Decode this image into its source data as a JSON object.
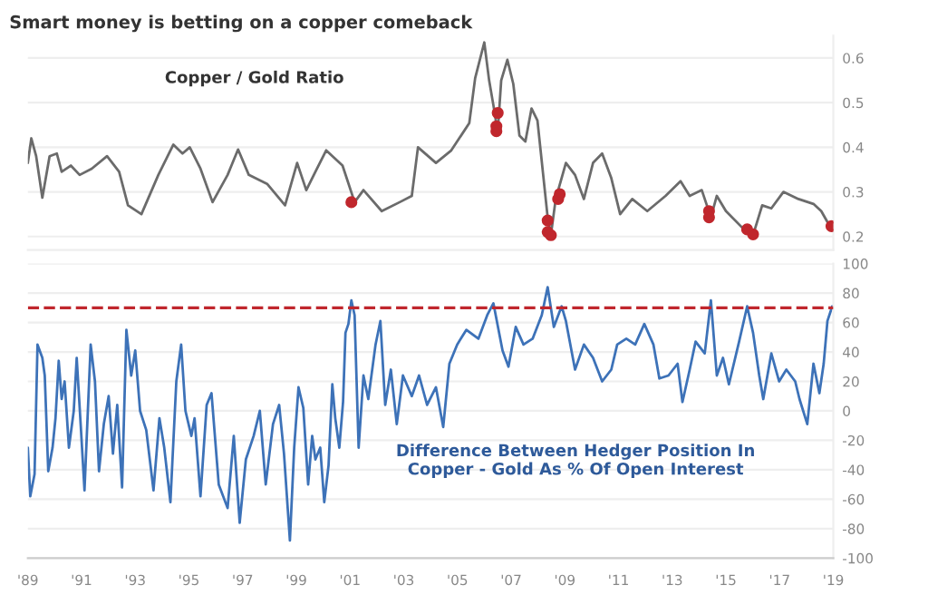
{
  "chart_data": [
    {
      "type": "line",
      "title": "Smart money is betting on a copper comeback",
      "annotations": [
        "Copper / Gold Ratio"
      ],
      "xlim": [
        1989,
        2019
      ],
      "ylim": [
        0.17,
        0.65
      ],
      "yticks": [
        0.2,
        0.3,
        0.4,
        0.5,
        0.6
      ],
      "grid": "y",
      "tick_labels": "y",
      "series": [
        {
          "color": "#6b6b6b",
          "x": [
            1989.0,
            1989.13,
            1989.31,
            1989.54,
            1989.81,
            1990.08,
            1990.26,
            1990.6,
            1990.93,
            1991.38,
            1991.95,
            1992.4,
            1992.73,
            1993.23,
            1993.86,
            1994.42,
            1994.76,
            1995.03,
            1995.43,
            1995.88,
            1996.44,
            1996.83,
            1997.23,
            1997.91,
            1998.58,
            1999.03,
            1999.37,
            1999.71,
            2000.11,
            2000.72,
            2001.17,
            2001.5,
            2002.18,
            2002.85,
            2003.3,
            2003.53,
            2004.2,
            2004.77,
            2005.44,
            2005.66,
            2006.0,
            2006.18,
            2006.34,
            2006.5,
            2006.63,
            2006.86,
            2007.08,
            2007.31,
            2007.53,
            2007.76,
            2007.98,
            2008.36,
            2008.48,
            2008.66,
            2009.04,
            2009.38,
            2009.71,
            2010.05,
            2010.39,
            2010.73,
            2011.06,
            2011.51,
            2012.07,
            2012.75,
            2013.31,
            2013.65,
            2014.1,
            2014.44,
            2014.66,
            2015.0,
            2015.67,
            2016.01,
            2016.35,
            2016.69,
            2017.14,
            2017.7,
            2018.26,
            2018.55,
            2018.87
          ],
          "values": [
            0.365,
            0.42,
            0.38,
            0.287,
            0.38,
            0.386,
            0.345,
            0.359,
            0.338,
            0.352,
            0.38,
            0.345,
            0.27,
            0.25,
            0.338,
            0.406,
            0.386,
            0.4,
            0.352,
            0.277,
            0.338,
            0.395,
            0.338,
            0.318,
            0.27,
            0.365,
            0.304,
            0.345,
            0.393,
            0.359,
            0.277,
            0.304,
            0.257,
            0.277,
            0.291,
            0.4,
            0.365,
            0.393,
            0.454,
            0.555,
            0.635,
            0.55,
            0.494,
            0.433,
            0.55,
            0.596,
            0.542,
            0.426,
            0.413,
            0.487,
            0.46,
            0.243,
            0.203,
            0.284,
            0.365,
            0.338,
            0.284,
            0.365,
            0.386,
            0.331,
            0.25,
            0.284,
            0.257,
            0.291,
            0.324,
            0.291,
            0.304,
            0.243,
            0.291,
            0.257,
            0.216,
            0.203,
            0.27,
            0.263,
            0.3,
            0.284,
            0.273,
            0.257,
            0.223
          ]
        },
        {
          "type": "scatter",
          "color": "#c0272d",
          "marker": "circle",
          "x": [
            2001.05,
            2006.5,
            2006.45,
            2006.45,
            2008.36,
            2008.36,
            2008.48,
            2008.75,
            2008.81,
            2014.37,
            2014.37,
            2015.79,
            2016.01,
            2018.93
          ],
          "values": [
            0.277,
            0.477,
            0.447,
            0.436,
            0.236,
            0.21,
            0.203,
            0.284,
            0.295,
            0.257,
            0.243,
            0.216,
            0.205,
            0.223
          ]
        }
      ]
    },
    {
      "type": "line",
      "annotations": [
        "Difference Between Hedger Position In\nCopper - Gold As % Of Open Interest"
      ],
      "xlim": [
        1989,
        2019
      ],
      "ylim": [
        -100,
        100
      ],
      "yticks": [
        -100,
        -80,
        -60,
        -40,
        -20,
        0,
        20,
        40,
        60,
        80,
        100
      ],
      "grid": "y",
      "xticks": [
        {
          "value": 1989,
          "label": "'89"
        },
        {
          "value": 1991,
          "label": "'91"
        },
        {
          "value": 1993,
          "label": "'93"
        },
        {
          "value": 1995,
          "label": "'95"
        },
        {
          "value": 1997,
          "label": "'97"
        },
        {
          "value": 1999,
          "label": "'99"
        },
        {
          "value": 2001,
          "label": "'01"
        },
        {
          "value": 2003,
          "label": "'03"
        },
        {
          "value": 2005,
          "label": "'05"
        },
        {
          "value": 2007,
          "label": "'07"
        },
        {
          "value": 2009,
          "label": "'09"
        },
        {
          "value": 2011,
          "label": "'11"
        },
        {
          "value": 2013,
          "label": "'13"
        },
        {
          "value": 2015,
          "label": "'15"
        },
        {
          "value": 2017,
          "label": "'17"
        },
        {
          "value": 2019,
          "label": "'19"
        }
      ],
      "ref_lines": [
        {
          "axis": "y",
          "value": 70,
          "color": "#c0272d",
          "line_style": "dashed"
        }
      ],
      "series": [
        {
          "color": "#3d72b8",
          "x": [
            1989.0,
            1989.09,
            1989.25,
            1989.36,
            1989.54,
            1989.63,
            1989.76,
            1989.92,
            1990.03,
            1990.15,
            1990.26,
            1990.37,
            1990.53,
            1990.71,
            1990.82,
            1990.98,
            1991.11,
            1991.34,
            1991.5,
            1991.65,
            1991.83,
            1992.01,
            1992.17,
            1992.33,
            1992.51,
            1992.67,
            1992.85,
            1993.0,
            1993.18,
            1993.41,
            1993.68,
            1993.9,
            1994.08,
            1994.31,
            1994.53,
            1994.71,
            1994.87,
            1995.09,
            1995.21,
            1995.43,
            1995.66,
            1995.84,
            1996.11,
            1996.44,
            1996.67,
            1996.89,
            1997.12,
            1997.41,
            1997.64,
            1997.86,
            1998.13,
            1998.36,
            1998.54,
            1998.76,
            1998.92,
            1999.08,
            1999.26,
            1999.44,
            1999.59,
            1999.71,
            1999.89,
            2000.04,
            2000.2,
            2000.34,
            2000.45,
            2000.6,
            2000.74,
            2000.83,
            2000.94,
            2001.05,
            2001.17,
            2001.32,
            2001.5,
            2001.68,
            2001.95,
            2002.13,
            2002.31,
            2002.52,
            2002.74,
            2002.97,
            2003.3,
            2003.57,
            2003.87,
            2004.2,
            2004.47,
            2004.7,
            2004.99,
            2005.33,
            2005.78,
            2006.11,
            2006.34,
            2006.68,
            2006.9,
            2007.17,
            2007.46,
            2007.8,
            2008.14,
            2008.36,
            2008.59,
            2008.88,
            2009.04,
            2009.38,
            2009.71,
            2010.05,
            2010.39,
            2010.73,
            2010.95,
            2011.29,
            2011.62,
            2011.96,
            2012.3,
            2012.52,
            2012.86,
            2013.2,
            2013.38,
            2013.65,
            2013.87,
            2014.21,
            2014.44,
            2014.66,
            2014.89,
            2015.11,
            2015.49,
            2015.79,
            2016.01,
            2016.24,
            2016.39,
            2016.69,
            2016.98,
            2017.25,
            2017.58,
            2017.74,
            2018.03,
            2018.26,
            2018.48,
            2018.64,
            2018.78,
            2018.96
          ],
          "values": [
            -25,
            -58,
            -43,
            45,
            36,
            24,
            -41,
            -25,
            -5,
            34,
            8,
            20,
            -25,
            0,
            36,
            -13,
            -54,
            45,
            20,
            -41,
            -9,
            10,
            -29,
            4,
            -52,
            55,
            24,
            41,
            0,
            -13,
            -54,
            -5,
            -25,
            -62,
            20,
            45,
            0,
            -17,
            -5,
            -58,
            4,
            12,
            -50,
            -66,
            -17,
            -76,
            -33,
            -17,
            0,
            -50,
            -9,
            4,
            -29,
            -88,
            -25,
            16,
            2,
            -50,
            -17,
            -33,
            -25,
            -62,
            -37,
            18,
            -5,
            -25,
            6,
            53,
            59,
            75,
            65,
            -25,
            24,
            8,
            45,
            61,
            4,
            28,
            -9,
            24,
            10,
            24,
            4,
            16,
            -11,
            32,
            45,
            55,
            49,
            65,
            73,
            41,
            30,
            57,
            45,
            49,
            65,
            84,
            57,
            71,
            61,
            28,
            45,
            36,
            20,
            28,
            45,
            49,
            45,
            59,
            45,
            22,
            24,
            32,
            6,
            28,
            47,
            39,
            75,
            24,
            36,
            18,
            47,
            71,
            53,
            24,
            8,
            39,
            20,
            28,
            20,
            8,
            -9,
            32,
            12,
            32,
            61,
            71
          ]
        }
      ]
    }
  ]
}
